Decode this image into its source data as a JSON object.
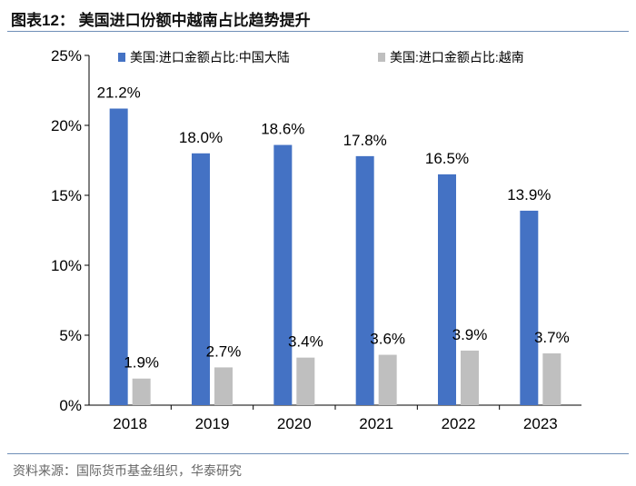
{
  "header": {
    "title": "图表12：  美国进口份额中越南占比趋势提升"
  },
  "footer": {
    "source": "资料来源：国际货币基金组织，华泰研究"
  },
  "chart_data": {
    "type": "bar",
    "categories": [
      "2018",
      "2019",
      "2020",
      "2021",
      "2022",
      "2023"
    ],
    "series": [
      {
        "name": "美国:进口金额占比:中国大陆",
        "values": [
          21.2,
          18.0,
          18.6,
          17.8,
          16.5,
          13.9
        ],
        "labels": [
          "21.2%",
          "18.0%",
          "18.6%",
          "17.8%",
          "16.5%",
          "13.9%"
        ],
        "color": "#4472c4"
      },
      {
        "name": "美国:进口金额占比:越南",
        "values": [
          1.9,
          2.7,
          3.4,
          3.6,
          3.9,
          3.7
        ],
        "labels": [
          "1.9%",
          "2.7%",
          "3.4%",
          "3.6%",
          "3.9%",
          "3.7%"
        ],
        "color": "#bfbfbf"
      }
    ],
    "yticks": [
      "0%",
      "5%",
      "10%",
      "15%",
      "20%",
      "25%"
    ],
    "ylim": [
      0,
      25
    ],
    "grid": false,
    "legend": "top"
  }
}
